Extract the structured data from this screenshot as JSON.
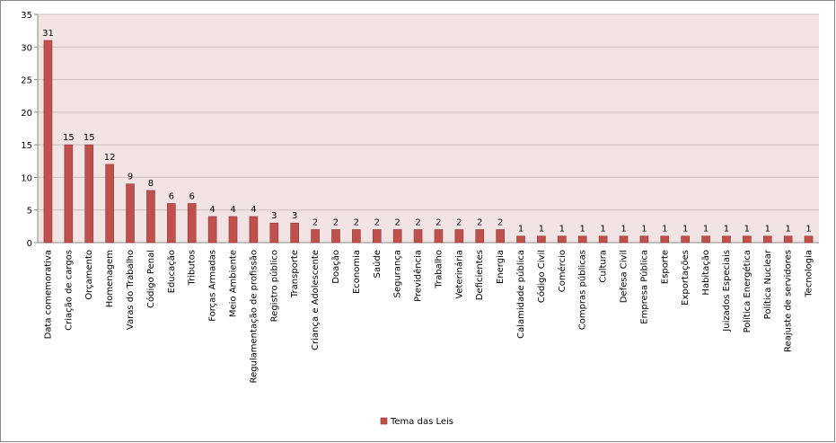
{
  "chart_data": {
    "type": "bar",
    "categories": [
      "Data comemorativa",
      "Criação de cargos",
      "Orçamento",
      "Homenagem",
      "Varas do Trabalho",
      "Código Penal",
      "Educação",
      "Tributos",
      "Forças Armadas",
      "Meio Ambiente",
      "Regulamentação de profissão",
      "Registro público",
      "Transporte",
      "Criança e Adolescente",
      "Doação",
      "Economia",
      "Saúde",
      "Segurança",
      "Previdência",
      "Trabalho",
      "Veterinária",
      "Deficientes",
      "Energia",
      "Calamidade pública",
      "Código Civil",
      "Comércio",
      "Compras públicas",
      "Cultura",
      "Defesa Civil",
      "Empresa Pública",
      "Esporte",
      "Exportações",
      "Habitação",
      "Juizados Especiais",
      "Política Energética",
      "Política Nuclear",
      "Reajuste de servidores",
      "Tecnologia"
    ],
    "series": [
      {
        "name": "Tema das Leis",
        "color": "#c0504d",
        "values": [
          31,
          15,
          15,
          12,
          9,
          8,
          6,
          6,
          4,
          4,
          4,
          3,
          3,
          2,
          2,
          2,
          2,
          2,
          2,
          2,
          2,
          2,
          2,
          1,
          1,
          1,
          1,
          1,
          1,
          1,
          1,
          1,
          1,
          1,
          1,
          1,
          1,
          1
        ]
      }
    ],
    "ylim": [
      0,
      35
    ],
    "yticks": [
      0,
      5,
      10,
      15,
      20,
      25,
      30,
      35
    ],
    "grid": true,
    "legend": "bottom"
  }
}
